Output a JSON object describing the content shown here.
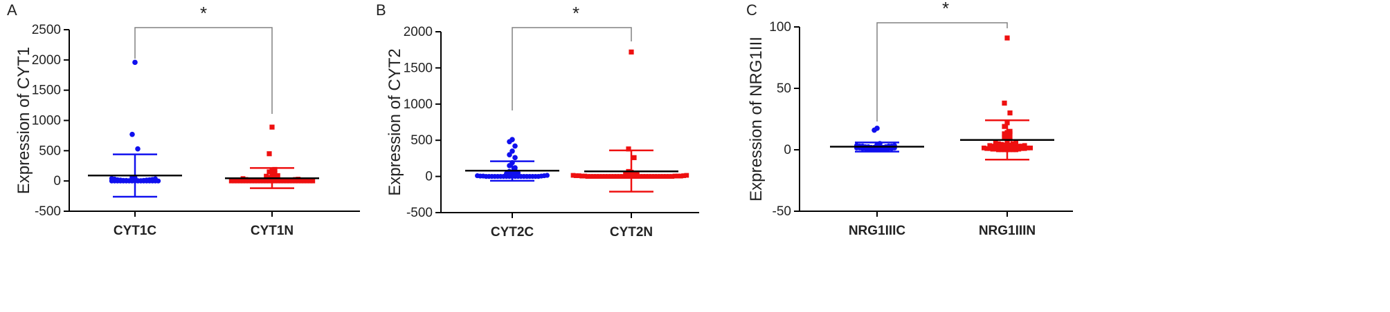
{
  "colors": {
    "c_group": "#1010ee",
    "n_group": "#ee1010",
    "mean_line": "#000000",
    "axis": "#000000",
    "bracket": "#808080"
  },
  "chart_data": [
    {
      "type": "scatter",
      "panel": "A",
      "ylabel": "Expression of CYT1",
      "ylim": [
        -500,
        2500
      ],
      "yticks": [
        "-500",
        "0",
        "500",
        "1000",
        "1500",
        "2000",
        "2500"
      ],
      "significance": "*",
      "groups": [
        {
          "name": "CYT1C",
          "color": "#1010ee",
          "marker": "circle",
          "mean": 90,
          "sd_low": -260,
          "sd_high": 440,
          "outliers": [
            1960,
            770,
            530
          ],
          "points": [
            0,
            0,
            0,
            0,
            0,
            0,
            0,
            0,
            0,
            0,
            0,
            0,
            0,
            0,
            0,
            0,
            0,
            5,
            5,
            5,
            5,
            5,
            10,
            10,
            10,
            15,
            15,
            20,
            20,
            25,
            30,
            35,
            40,
            50,
            60
          ]
        },
        {
          "name": "CYT1N",
          "color": "#ee1010",
          "marker": "square",
          "mean": 45,
          "sd_low": -120,
          "sd_high": 215,
          "outliers": [
            890,
            450,
            190,
            170,
            150,
            130
          ],
          "points": [
            0,
            0,
            0,
            0,
            0,
            0,
            0,
            0,
            0,
            0,
            0,
            0,
            0,
            0,
            0,
            0,
            0,
            0,
            0,
            0,
            0,
            0,
            0,
            0,
            0,
            0,
            0,
            0,
            0,
            5,
            5,
            5,
            5,
            5,
            5,
            5,
            5,
            10,
            10,
            10,
            10,
            15,
            15,
            20,
            20,
            25,
            25,
            30,
            40,
            50,
            60,
            70,
            80,
            90,
            100
          ]
        }
      ]
    },
    {
      "type": "scatter",
      "panel": "B",
      "ylabel": "Expression of CYT2",
      "ylim": [
        -500,
        2000
      ],
      "yticks": [
        "-500",
        "0",
        "500",
        "1000",
        "1500",
        "2000"
      ],
      "significance": "*",
      "groups": [
        {
          "name": "CYT2C",
          "color": "#1010ee",
          "marker": "circle",
          "mean": 80,
          "sd_low": -60,
          "sd_high": 210,
          "outliers": [
            510,
            480,
            420,
            350,
            300,
            260,
            190,
            150,
            120
          ],
          "points": [
            0,
            0,
            0,
            0,
            0,
            0,
            0,
            0,
            0,
            0,
            0,
            0,
            0,
            0,
            0,
            0,
            0,
            0,
            0,
            5,
            5,
            5,
            10,
            10,
            15,
            20,
            25,
            30,
            40,
            50,
            60,
            70,
            80
          ]
        },
        {
          "name": "CYT2N",
          "color": "#ee1010",
          "marker": "square",
          "mean": 70,
          "sd_low": -210,
          "sd_high": 360,
          "outliers": [
            1720,
            380,
            260
          ],
          "points": [
            0,
            0,
            0,
            0,
            0,
            0,
            0,
            0,
            0,
            0,
            0,
            0,
            0,
            0,
            0,
            0,
            0,
            0,
            0,
            0,
            0,
            0,
            0,
            0,
            0,
            0,
            0,
            0,
            0,
            0,
            5,
            5,
            5,
            5,
            5,
            10,
            10,
            10,
            15,
            15,
            20,
            25,
            30,
            40,
            50,
            60,
            70
          ]
        }
      ]
    },
    {
      "type": "scatter",
      "panel": "C",
      "ylabel": "Expression of NRG1III",
      "ylim": [
        -50,
        100
      ],
      "yticks": [
        "-50",
        "0",
        "50",
        "100"
      ],
      "significance": "*",
      "groups": [
        {
          "name": "NRG1IIIC",
          "color": "#1010ee",
          "marker": "circle",
          "mean": 2.5,
          "sd_low": -1.5,
          "sd_high": 6,
          "outliers": [
            17.5,
            16,
            5,
            4
          ],
          "points": [
            0,
            0,
            0,
            0,
            0.5,
            0.5,
            0.5,
            1,
            1,
            1,
            1,
            1.5,
            1.5,
            1.5,
            2,
            2,
            2,
            2,
            2,
            2.5,
            2.5,
            2.5,
            3,
            3,
            3,
            3,
            3.5,
            3.5,
            4
          ]
        },
        {
          "name": "NRG1IIIN",
          "color": "#ee1010",
          "marker": "square",
          "mean": 8,
          "sd_low": -8,
          "sd_high": 24,
          "outliers": [
            91,
            38,
            30,
            22,
            19,
            15,
            14,
            13,
            13,
            11,
            10,
            9,
            7
          ],
          "points": [
            0,
            0,
            0,
            0,
            0,
            0,
            0,
            0.5,
            0.5,
            0.5,
            1,
            1,
            1,
            1,
            1.5,
            1.5,
            1.5,
            2,
            2,
            2,
            2,
            2.5,
            2.5,
            2.5,
            3,
            3,
            3,
            3,
            3.5,
            3.5,
            4,
            4,
            4,
            4.5,
            5,
            5,
            5.5,
            6
          ]
        }
      ]
    }
  ]
}
